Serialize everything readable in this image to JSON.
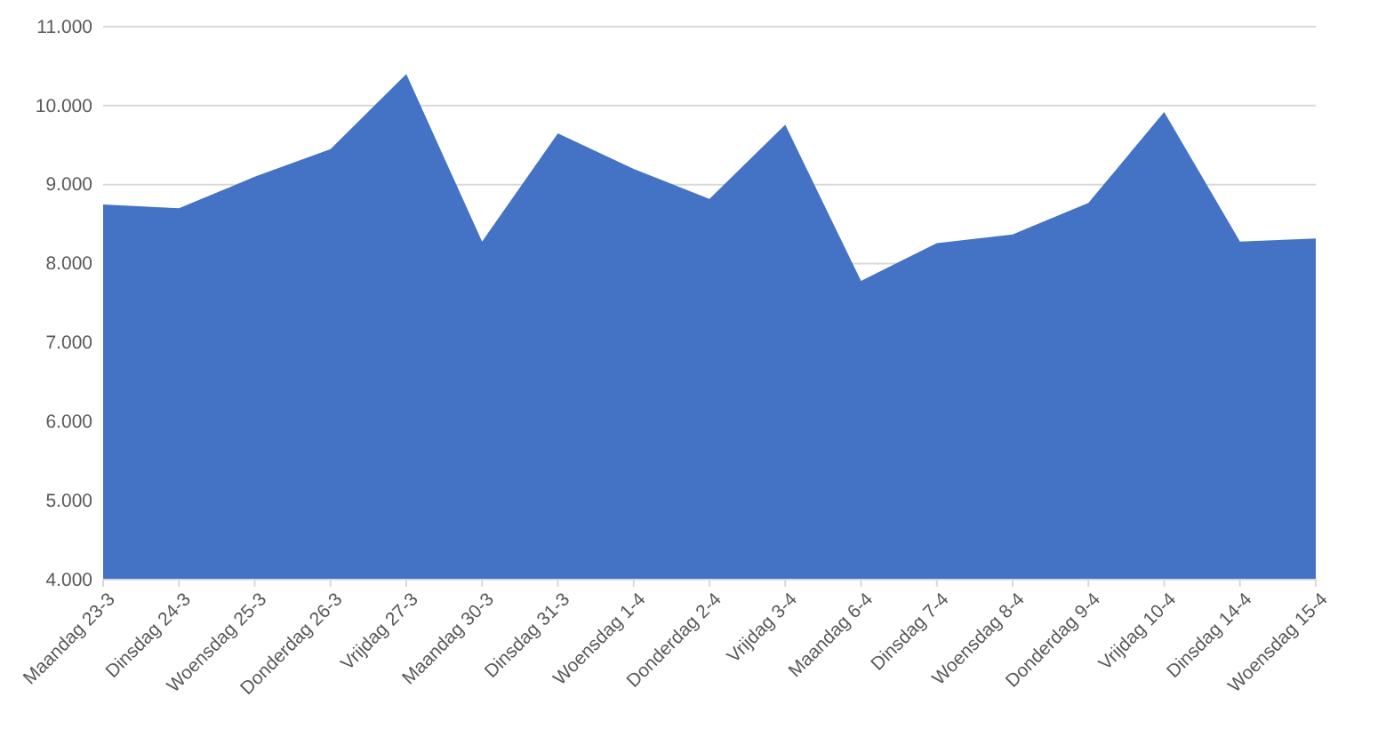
{
  "chart_data": {
    "type": "area",
    "categories": [
      "Maandag 23-3",
      "Dinsdag 24-3",
      "Woensdag 25-3",
      "Donderdag 26-3",
      "Vrijdag 27-3",
      "Maandag 30-3",
      "Dinsdag 31-3",
      "Woensdag 1-4",
      "Donderdag 2-4",
      "Vrijdag 3-4",
      "Maandag 6-4",
      "Dinsdag 7-4",
      "Woensdag 8-4",
      "Donderdag 9-4",
      "Vrijdag 10-4",
      "Dinsdag 14-4",
      "Woensdag 15-4"
    ],
    "series": [
      {
        "color": "#4472c4",
        "values": [
          8750,
          8700,
          9100,
          9450,
          10400,
          8280,
          9650,
          9200,
          8820,
          9760,
          7780,
          8260,
          8370,
          8770,
          9920,
          8280,
          8320
        ]
      }
    ],
    "ylim": [
      4000,
      11000
    ],
    "yticks": [
      {
        "value": 4000,
        "label": "4.000"
      },
      {
        "value": 5000,
        "label": "5.000"
      },
      {
        "value": 6000,
        "label": "6.000"
      },
      {
        "value": 7000,
        "label": "7.000"
      },
      {
        "value": 8000,
        "label": "8.000"
      },
      {
        "value": 9000,
        "label": "9.000"
      },
      {
        "value": 10000,
        "label": "10.000"
      },
      {
        "value": 11000,
        "label": "11.000"
      }
    ],
    "grid": "y"
  }
}
